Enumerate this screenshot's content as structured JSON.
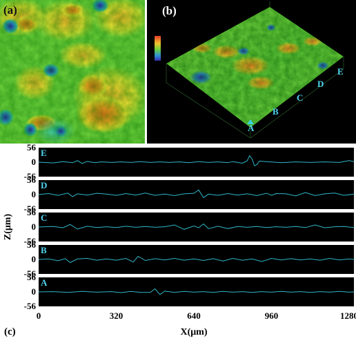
{
  "panel_a": {
    "label": "(a)"
  },
  "panel_b": {
    "label": "(b)",
    "markers": [
      "A",
      "B",
      "C",
      "D",
      "E"
    ]
  },
  "chart_data": {
    "type": "line",
    "panel_label": "(c)",
    "xlabel": "X(μm)",
    "ylabel": "Z(μm)",
    "xlim": [
      0,
      1300
    ],
    "ylim": [
      -56,
      56
    ],
    "x_ticks": [
      "0",
      "320",
      "640",
      "960",
      "1280"
    ],
    "y_ticks": [
      "56",
      "0",
      "-56"
    ],
    "series": [
      {
        "name": "E",
        "x": [
          0,
          60,
          100,
          140,
          160,
          180,
          200,
          230,
          260,
          300,
          340,
          380,
          420,
          460,
          500,
          540,
          580,
          620,
          660,
          700,
          740,
          780,
          800,
          820,
          840,
          860,
          870,
          880,
          890,
          900,
          910,
          940,
          1000,
          1060,
          1120,
          1180,
          1240,
          1280,
          1300
        ],
        "values": [
          0,
          -3,
          2,
          -2,
          6,
          -5,
          3,
          -2,
          1,
          -1,
          1,
          -1,
          2,
          -1,
          1,
          -1,
          1,
          -2,
          2,
          -1,
          1,
          -2,
          2,
          -1,
          -4,
          5,
          25,
          12,
          -14,
          -9,
          4,
          2,
          -2,
          1,
          -1,
          1,
          -1,
          6,
          2
        ]
      },
      {
        "name": "D",
        "x": [
          0,
          40,
          80,
          120,
          140,
          160,
          200,
          240,
          280,
          320,
          360,
          400,
          440,
          480,
          520,
          560,
          600,
          640,
          660,
          680,
          700,
          740,
          780,
          820,
          860,
          900,
          940,
          960,
          980,
          1020,
          1060,
          1100,
          1140,
          1180,
          1220,
          1260,
          1300
        ],
        "values": [
          0,
          4,
          -3,
          6,
          -8,
          3,
          -2,
          5,
          2,
          -3,
          4,
          -2,
          6,
          -3,
          2,
          -4,
          3,
          5,
          18,
          -12,
          2,
          -3,
          4,
          -2,
          3,
          -4,
          5,
          -3,
          4,
          3,
          -5,
          8,
          -4,
          3,
          6,
          -3,
          2
        ]
      },
      {
        "name": "C",
        "x": [
          0,
          60,
          100,
          130,
          160,
          200,
          240,
          280,
          320,
          360,
          400,
          440,
          480,
          520,
          560,
          600,
          640,
          660,
          680,
          700,
          740,
          780,
          820,
          860,
          900,
          940,
          980,
          1020,
          1060,
          1100,
          1140,
          1180,
          1220,
          1260,
          1300
        ],
        "values": [
          0,
          2,
          -3,
          10,
          -8,
          3,
          -2,
          1,
          -2,
          3,
          -1,
          2,
          -1,
          1,
          8,
          -9,
          4,
          -3,
          12,
          -6,
          3,
          -6,
          2,
          -1,
          2,
          -2,
          1,
          -1,
          2,
          -2,
          8,
          -3,
          1,
          2,
          -2
        ]
      },
      {
        "name": "B",
        "x": [
          0,
          40,
          80,
          110,
          130,
          160,
          200,
          240,
          280,
          320,
          360,
          390,
          410,
          440,
          480,
          520,
          560,
          600,
          640,
          680,
          720,
          760,
          800,
          840,
          880,
          920,
          960,
          1000,
          1040,
          1080,
          1120,
          1160,
          1200,
          1240,
          1280,
          1300
        ],
        "values": [
          0,
          2,
          -5,
          3,
          -12,
          2,
          4,
          -3,
          2,
          -3,
          4,
          -10,
          12,
          -4,
          3,
          -2,
          4,
          -3,
          2,
          -4,
          3,
          -6,
          4,
          -3,
          2,
          -8,
          4,
          -2,
          3,
          -2,
          2,
          -3,
          4,
          -2,
          2,
          0
        ]
      },
      {
        "name": "A",
        "x": [
          0,
          60,
          120,
          180,
          240,
          300,
          340,
          380,
          420,
          460,
          480,
          500,
          520,
          560,
          600,
          640,
          680,
          720,
          760,
          800,
          840,
          880,
          920,
          960,
          1000,
          1040,
          1080,
          1120,
          1160,
          1200,
          1240,
          1280,
          1300
        ],
        "values": [
          0,
          1,
          -2,
          2,
          -1,
          1,
          -3,
          2,
          -2,
          -2,
          12,
          -10,
          3,
          -2,
          2,
          -1,
          1,
          -2,
          2,
          -1,
          1,
          -2,
          1,
          -1,
          2,
          -1,
          1,
          -2,
          1,
          -1,
          2,
          -1,
          0
        ]
      }
    ]
  }
}
